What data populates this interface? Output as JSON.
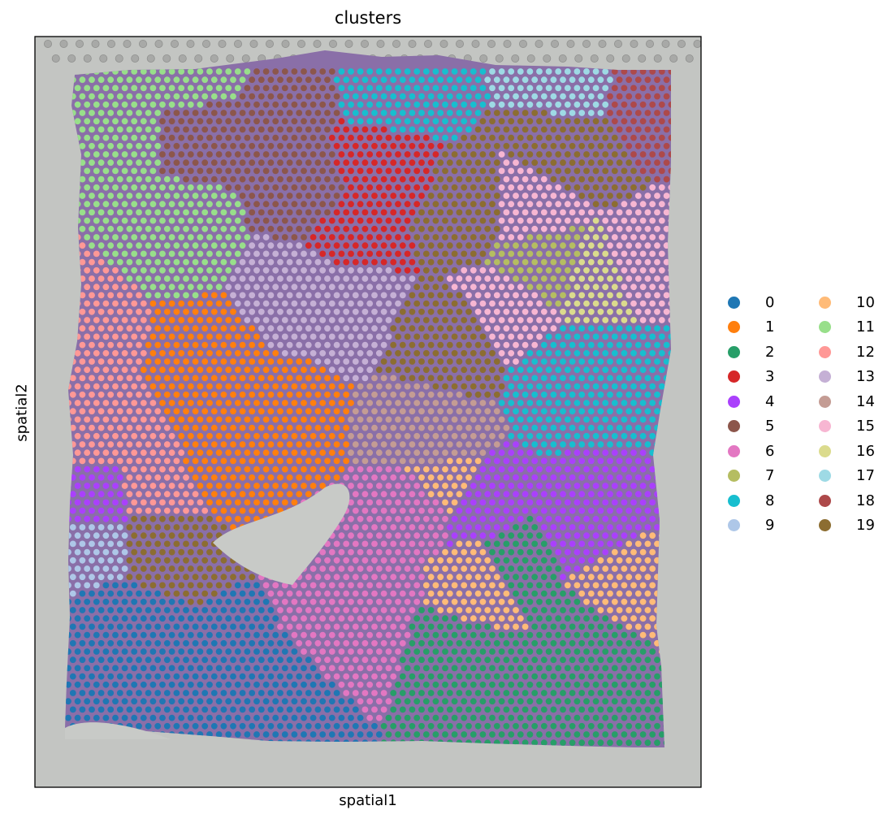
{
  "chart_data": {
    "type": "scatter",
    "title": "clusters",
    "xlabel": "spatial1",
    "ylabel": "spatial2",
    "grid": false,
    "legend_placement": "right",
    "legend_columns": 2,
    "background_image": "tissue-histology-image",
    "series": [
      {
        "name": "0",
        "color": "#1f77b4"
      },
      {
        "name": "1",
        "color": "#ff7f0e"
      },
      {
        "name": "2",
        "color": "#279e68"
      },
      {
        "name": "3",
        "color": "#d62728"
      },
      {
        "name": "4",
        "color": "#aa40fc"
      },
      {
        "name": "5",
        "color": "#8c564b"
      },
      {
        "name": "6",
        "color": "#e377c2"
      },
      {
        "name": "7",
        "color": "#b5bd61"
      },
      {
        "name": "8",
        "color": "#17becf"
      },
      {
        "name": "9",
        "color": "#aec7e8"
      },
      {
        "name": "10",
        "color": "#ffbb78"
      },
      {
        "name": "11",
        "color": "#98df8a"
      },
      {
        "name": "12",
        "color": "#ff9896"
      },
      {
        "name": "13",
        "color": "#c5b0d5"
      },
      {
        "name": "14",
        "color": "#c49c94"
      },
      {
        "name": "15",
        "color": "#f7b6d2"
      },
      {
        "name": "16",
        "color": "#dbdb8d"
      },
      {
        "name": "17",
        "color": "#9edae5"
      },
      {
        "name": "18",
        "color": "#ad494a"
      },
      {
        "name": "19",
        "color": "#8c6d31"
      }
    ]
  }
}
